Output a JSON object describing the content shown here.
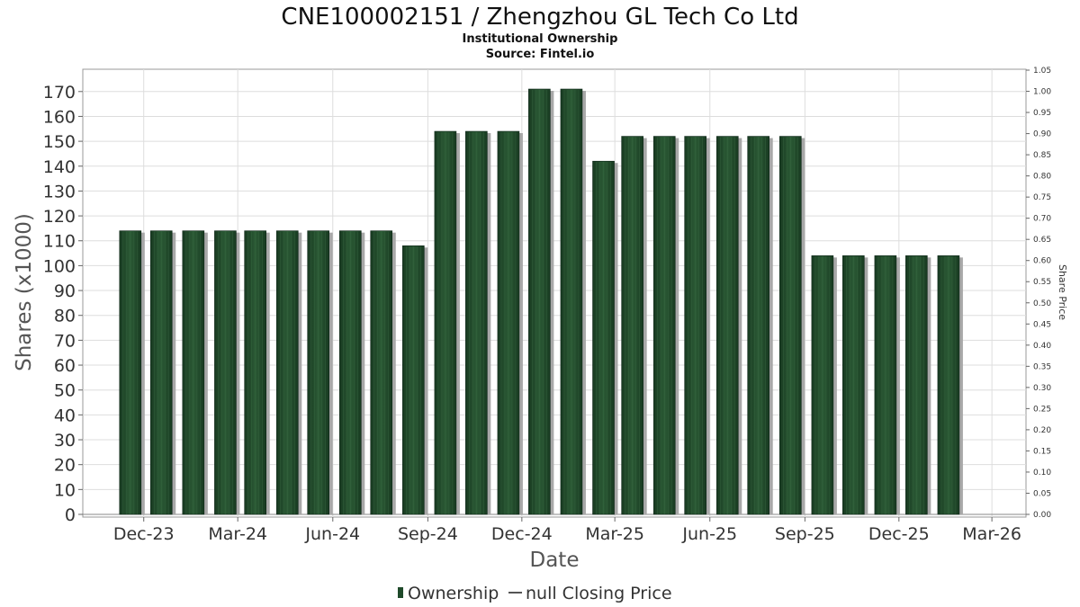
{
  "chart_data": {
    "type": "bar",
    "title": "CNE100002151 / Zhengzhou GL Tech Co Ltd",
    "subtitle": "Institutional Ownership",
    "source": "Source: Fintel.io",
    "xlabel": "Date",
    "ylabel": "Shares (x1000)",
    "y2label": "Share Price",
    "ylim": [
      0,
      180
    ],
    "y_ticks": [
      0,
      10,
      20,
      30,
      40,
      50,
      60,
      70,
      80,
      90,
      100,
      110,
      120,
      130,
      140,
      150,
      160,
      170
    ],
    "y2lim": [
      0,
      1.05
    ],
    "y2_ticks": [
      "0.00",
      "0.05",
      "0.10",
      "0.15",
      "0.20",
      "0.25",
      "0.30",
      "0.35",
      "0.40",
      "0.45",
      "0.50",
      "0.55",
      "0.60",
      "0.65",
      "0.70",
      "0.75",
      "0.80",
      "0.85",
      "0.90",
      "0.95",
      "1.00",
      "1.05"
    ],
    "x_range": [
      "2023-10-03",
      "2026-04-03"
    ],
    "x_ticks": [
      {
        "date": "2023-12-01",
        "label": "Dec-23"
      },
      {
        "date": "2024-03-01",
        "label": "Mar-24"
      },
      {
        "date": "2024-06-01",
        "label": "Jun-24"
      },
      {
        "date": "2024-09-01",
        "label": "Sep-24"
      },
      {
        "date": "2024-12-01",
        "label": "Dec-24"
      },
      {
        "date": "2025-03-01",
        "label": "Mar-25"
      },
      {
        "date": "2025-06-01",
        "label": "Jun-25"
      },
      {
        "date": "2025-09-01",
        "label": "Sep-25"
      },
      {
        "date": "2025-12-01",
        "label": "Dec-25"
      },
      {
        "date": "2026-03-01",
        "label": "Mar-26"
      }
    ],
    "grid": true,
    "legend_position": "bottom",
    "series": [
      {
        "name": "Ownership",
        "color": "#1f4a2a",
        "x": [
          "2023-11-18",
          "2023-12-18",
          "2024-01-18",
          "2024-02-18",
          "2024-03-18",
          "2024-04-18",
          "2024-05-18",
          "2024-06-18",
          "2024-07-18",
          "2024-08-18",
          "2024-09-18",
          "2024-10-18",
          "2024-11-18",
          "2024-12-18",
          "2025-01-18",
          "2025-02-18",
          "2025-03-18",
          "2025-04-18",
          "2025-05-18",
          "2025-06-18",
          "2025-07-18",
          "2025-08-18",
          "2025-09-18",
          "2025-10-18",
          "2025-11-18",
          "2025-12-18",
          "2026-01-18"
        ],
        "values": [
          114,
          114,
          114,
          114,
          114,
          114,
          114,
          114,
          114,
          108,
          154,
          154,
          154,
          171,
          171,
          142,
          152,
          152,
          152,
          152,
          152,
          152,
          104,
          104,
          104,
          104,
          104
        ]
      },
      {
        "name": "null Closing Price",
        "color": "#555555",
        "values": []
      }
    ]
  }
}
